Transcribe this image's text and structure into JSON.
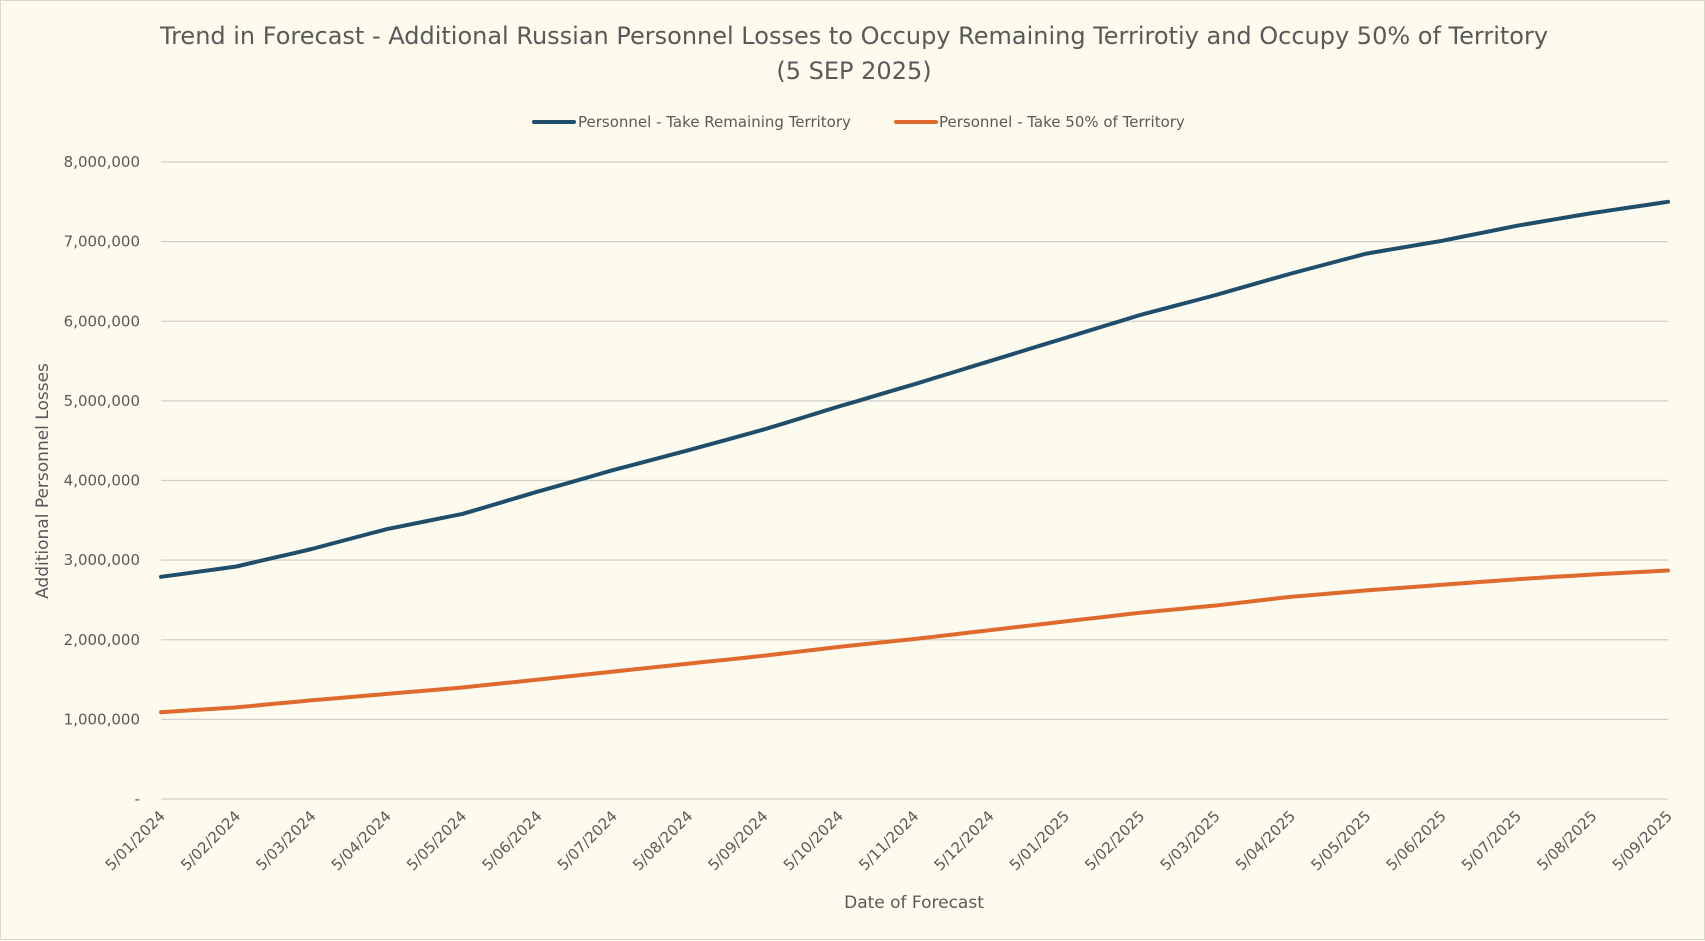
{
  "chart_data": {
    "type": "line",
    "title": "Trend in Forecast - Additional Russian Personnel Losses to Occupy Remaining Terrirotiy and Occupy 50% of Territory",
    "subtitle": "(5 SEP 2025)",
    "xlabel": "Date of Forecast",
    "ylabel": "Additional Personnel Losses",
    "ylim": [
      0,
      8000000
    ],
    "y_ticks": [
      {
        "value": 0,
        "label": "-"
      },
      {
        "value": 1000000,
        "label": "1,000,000"
      },
      {
        "value": 2000000,
        "label": "2,000,000"
      },
      {
        "value": 3000000,
        "label": "3,000,000"
      },
      {
        "value": 4000000,
        "label": "4,000,000"
      },
      {
        "value": 5000000,
        "label": "5,000,000"
      },
      {
        "value": 6000000,
        "label": "6,000,000"
      },
      {
        "value": 7000000,
        "label": "7,000,000"
      },
      {
        "value": 8000000,
        "label": "8,000,000"
      }
    ],
    "x_ticks": [
      "5/01/2024",
      "5/02/2024",
      "5/03/2024",
      "5/04/2024",
      "5/05/2024",
      "5/06/2024",
      "5/07/2024",
      "5/08/2024",
      "5/09/2024",
      "5/10/2024",
      "5/11/2024",
      "5/12/2024",
      "5/01/2025",
      "5/02/2025",
      "5/03/2025",
      "5/04/2025",
      "5/05/2025",
      "5/06/2025",
      "5/07/2025",
      "5/08/2025",
      "5/09/2025"
    ],
    "grid": true,
    "legend_position": "top-center",
    "series": [
      {
        "name": "Personnel - Take Remaining Territory",
        "color": "#1f4e6b",
        "points": [
          [
            "5/01/2024",
            2790000
          ],
          [
            "5/02/2024",
            2920000
          ],
          [
            "5/03/2024",
            3140000
          ],
          [
            "5/04/2024",
            3390000
          ],
          [
            "5/05/2024",
            3580000
          ],
          [
            "5/06/2024",
            3860000
          ],
          [
            "5/07/2024",
            4130000
          ],
          [
            "5/08/2024",
            4380000
          ],
          [
            "5/09/2024",
            4640000
          ],
          [
            "5/10/2024",
            4930000
          ],
          [
            "5/11/2024",
            5210000
          ],
          [
            "5/12/2024",
            5500000
          ],
          [
            "5/01/2025",
            5790000
          ],
          [
            "5/02/2025",
            6080000
          ],
          [
            "5/03/2025",
            6330000
          ],
          [
            "5/04/2025",
            6600000
          ],
          [
            "5/05/2025",
            6850000
          ],
          [
            "5/06/2025",
            7010000
          ],
          [
            "5/07/2025",
            7200000
          ],
          [
            "5/08/2025",
            7360000
          ],
          [
            "5/09/2025",
            7500000
          ]
        ]
      },
      {
        "name": "Personnel - Take 50% of Territory",
        "color": "#e06a2e",
        "points": [
          [
            "5/01/2024",
            1090000
          ],
          [
            "5/02/2024",
            1150000
          ],
          [
            "5/03/2024",
            1240000
          ],
          [
            "5/04/2024",
            1320000
          ],
          [
            "5/05/2024",
            1400000
          ],
          [
            "5/06/2024",
            1500000
          ],
          [
            "5/07/2024",
            1600000
          ],
          [
            "5/08/2024",
            1700000
          ],
          [
            "5/09/2024",
            1800000
          ],
          [
            "5/10/2024",
            1910000
          ],
          [
            "5/11/2024",
            2010000
          ],
          [
            "5/12/2024",
            2120000
          ],
          [
            "5/01/2025",
            2230000
          ],
          [
            "5/02/2025",
            2340000
          ],
          [
            "5/03/2025",
            2430000
          ],
          [
            "5/04/2025",
            2540000
          ],
          [
            "5/05/2025",
            2620000
          ],
          [
            "5/06/2025",
            2690000
          ],
          [
            "5/07/2025",
            2760000
          ],
          [
            "5/08/2025",
            2820000
          ],
          [
            "5/09/2025",
            2870000
          ]
        ]
      }
    ]
  }
}
